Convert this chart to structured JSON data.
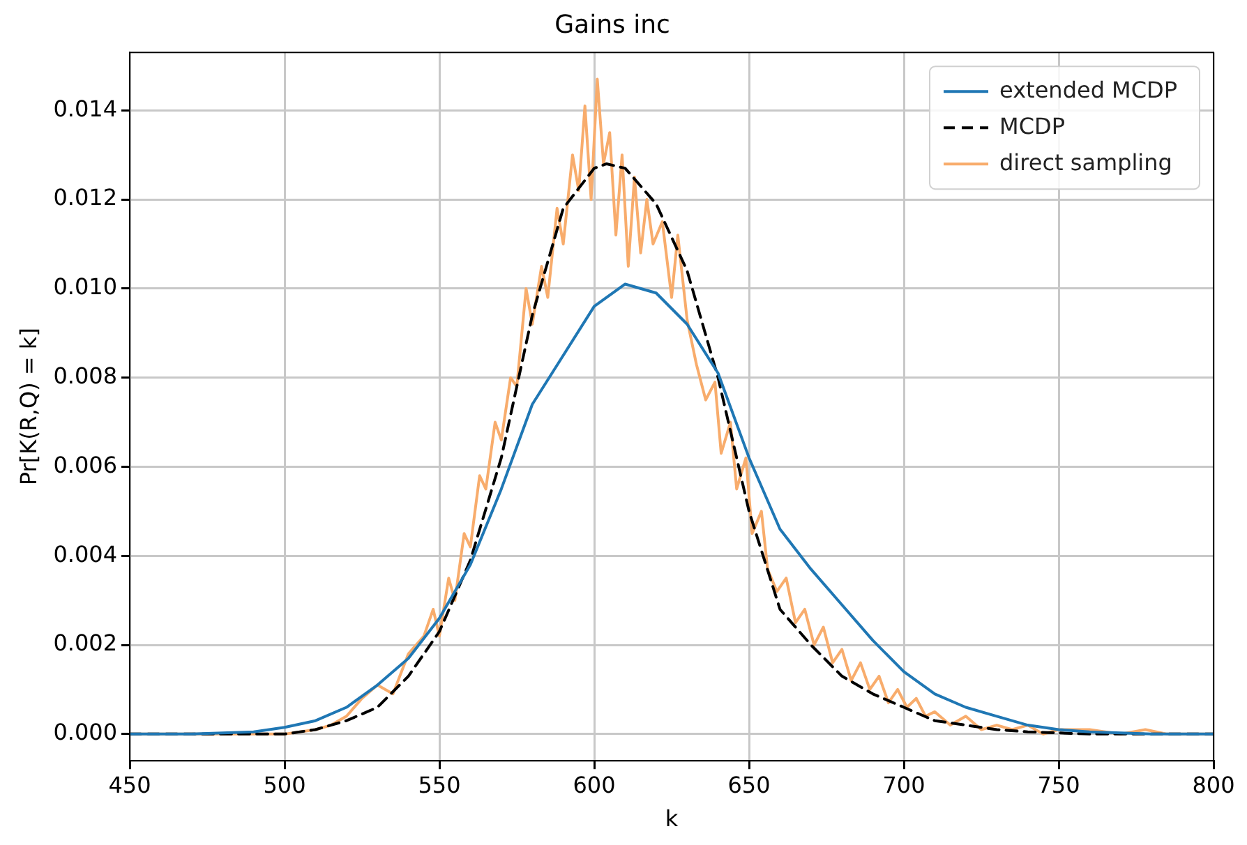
{
  "chart_data": {
    "type": "line",
    "title": "Gains inc",
    "xlabel": "k",
    "ylabel": "Pr[K(R,Q) = k]",
    "xlim": [
      450,
      800
    ],
    "xticks": [
      450,
      500,
      550,
      600,
      650,
      700,
      750,
      800
    ],
    "ylim": [
      -0.0006,
      0.0153
    ],
    "yticks": [
      {
        "value": 0,
        "label": "0.000"
      },
      {
        "value": 0.002,
        "label": "0.002"
      },
      {
        "value": 0.004,
        "label": "0.004"
      },
      {
        "value": 0.006,
        "label": "0.006"
      },
      {
        "value": 0.008,
        "label": "0.008"
      },
      {
        "value": 0.01,
        "label": "0.010"
      },
      {
        "value": 0.012,
        "label": "0.012"
      },
      {
        "value": 0.014,
        "label": "0.014"
      }
    ],
    "grid": true,
    "legend": "top right",
    "marker": "none",
    "series": [
      {
        "name": "extended MCDP",
        "color": "#1f77b4",
        "line_style": "solid",
        "x": [
          450,
          470,
          490,
          500,
          510,
          520,
          530,
          540,
          550,
          560,
          570,
          580,
          590,
          600,
          610,
          620,
          630,
          640,
          650,
          660,
          670,
          680,
          690,
          700,
          710,
          720,
          730,
          740,
          750,
          760,
          780,
          800
        ],
        "values": [
          0,
          0,
          5e-05,
          0.00015,
          0.0003,
          0.0006,
          0.0011,
          0.0017,
          0.0026,
          0.0038,
          0.0055,
          0.0074,
          0.0085,
          0.0096,
          0.0101,
          0.0099,
          0.0092,
          0.0081,
          0.0062,
          0.0046,
          0.0037,
          0.0029,
          0.0021,
          0.0014,
          0.0009,
          0.0006,
          0.0004,
          0.0002,
          0.0001,
          5e-05,
          0,
          0
        ]
      },
      {
        "name": "MCDP",
        "color": "#000000",
        "line_style": "dashed",
        "x": [
          450,
          480,
          500,
          510,
          520,
          530,
          540,
          550,
          560,
          570,
          580,
          590,
          600,
          604,
          610,
          620,
          630,
          640,
          650,
          660,
          670,
          680,
          690,
          700,
          710,
          720,
          730,
          740,
          760,
          800
        ],
        "values": [
          0,
          0,
          0,
          0.0001,
          0.0003,
          0.0006,
          0.0013,
          0.0023,
          0.0039,
          0.0062,
          0.0094,
          0.0118,
          0.0127,
          0.0128,
          0.0127,
          0.0119,
          0.0104,
          0.008,
          0.005,
          0.0028,
          0.002,
          0.0013,
          0.0009,
          0.0006,
          0.0003,
          0.0002,
          0.0001,
          5e-05,
          0,
          0
        ]
      },
      {
        "name": "direct sampling",
        "color": "#f8ac6c",
        "line_style": "solid",
        "x": [
          450,
          500,
          510,
          515,
          520,
          525,
          530,
          535,
          540,
          545,
          548,
          550,
          553,
          555,
          558,
          560,
          563,
          565,
          568,
          570,
          573,
          575,
          578,
          580,
          583,
          585,
          588,
          590,
          593,
          595,
          597,
          599,
          601,
          603,
          605,
          607,
          609,
          611,
          613,
          615,
          617,
          619,
          622,
          625,
          627,
          630,
          633,
          636,
          639,
          641,
          644,
          646,
          649,
          651,
          654,
          656,
          659,
          662,
          665,
          668,
          671,
          674,
          677,
          680,
          683,
          686,
          689,
          692,
          695,
          698,
          701,
          704,
          707,
          710,
          715,
          720,
          725,
          730,
          735,
          740,
          745,
          750,
          760,
          770,
          778,
          785,
          800
        ],
        "values": [
          0,
          0,
          0.0001,
          0.0002,
          0.0004,
          0.0008,
          0.0011,
          0.0009,
          0.0018,
          0.0022,
          0.0028,
          0.0022,
          0.0035,
          0.003,
          0.0045,
          0.0042,
          0.0058,
          0.0055,
          0.007,
          0.0066,
          0.008,
          0.0078,
          0.01,
          0.0092,
          0.0105,
          0.0098,
          0.0118,
          0.011,
          0.013,
          0.0122,
          0.0141,
          0.012,
          0.0147,
          0.0128,
          0.0135,
          0.0112,
          0.013,
          0.0105,
          0.0125,
          0.0108,
          0.012,
          0.011,
          0.0115,
          0.0098,
          0.0112,
          0.0093,
          0.0083,
          0.0075,
          0.0079,
          0.0063,
          0.007,
          0.0055,
          0.0062,
          0.0045,
          0.005,
          0.0037,
          0.0032,
          0.0035,
          0.0025,
          0.0028,
          0.002,
          0.0024,
          0.0016,
          0.0019,
          0.0012,
          0.0016,
          0.001,
          0.0013,
          0.0007,
          0.001,
          0.0006,
          0.0008,
          0.0004,
          0.0005,
          0.0002,
          0.0004,
          0.0001,
          0.0002,
          0.0001,
          0.0002,
          0,
          0.0001,
          0.0001,
          0,
          0.0001,
          0,
          0
        ]
      }
    ]
  }
}
